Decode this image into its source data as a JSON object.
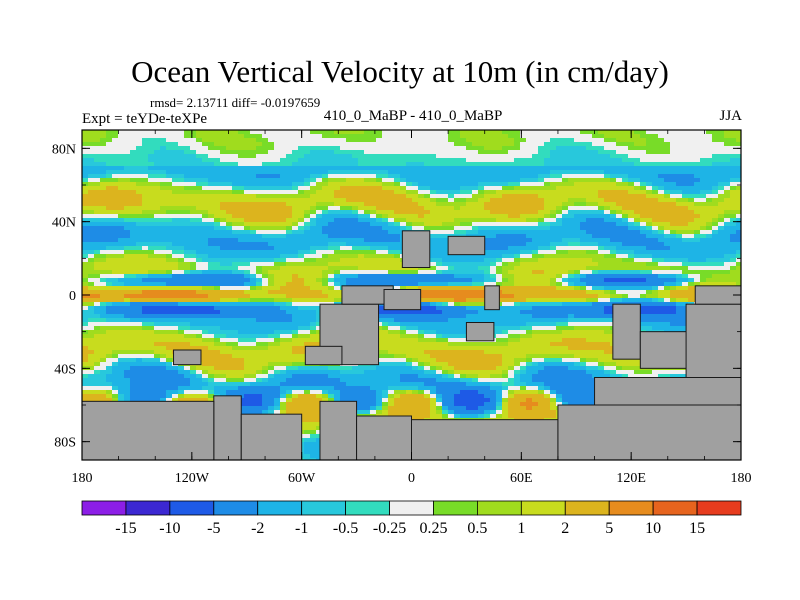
{
  "chart_data": {
    "type": "heatmap",
    "title": "Ocean Vertical Velocity at 10m (in cm/day)",
    "stats": "rmsd= 2.13711 diff= -0.0197659",
    "subtitle": "410_0_MaBP - 410_0_MaBP",
    "expt": "Expt = teYDe-teXPe",
    "season": "JJA",
    "x_range": [
      -180,
      180
    ],
    "y_range": [
      -90,
      90
    ],
    "x_ticks": [
      {
        "value": -180,
        "label": "180"
      },
      {
        "value": -120,
        "label": "120W"
      },
      {
        "value": -60,
        "label": "60W"
      },
      {
        "value": 0,
        "label": "0"
      },
      {
        "value": 60,
        "label": "60E"
      },
      {
        "value": 120,
        "label": "120E"
      },
      {
        "value": 180,
        "label": "180"
      }
    ],
    "y_ticks": [
      {
        "value": 80,
        "label": "80N"
      },
      {
        "value": 40,
        "label": "40N"
      },
      {
        "value": 0,
        "label": "0"
      },
      {
        "value": -40,
        "label": "40S"
      },
      {
        "value": -80,
        "label": "80S"
      }
    ],
    "colorbar": {
      "colors": [
        "#8c1ee6",
        "#3c28d2",
        "#1e5ae6",
        "#1e8ce6",
        "#1eb4e6",
        "#28c8dc",
        "#32dcbe",
        "#f0f0f0",
        "#78dc28",
        "#a0dc1e",
        "#c8dc1e",
        "#dcb41e",
        "#e68c1e",
        "#e6641e",
        "#e63c1e"
      ],
      "labels": [
        "-15",
        "-10",
        "-5",
        "-2",
        "-1",
        "-0.5",
        "-0.25",
        "0.25",
        "0.5",
        "1",
        "2",
        "5",
        "10",
        "15"
      ]
    },
    "land_color": "#a0a0a0",
    "land": [
      {
        "lon0": -108,
        "lon1": -93,
        "lat0": -90,
        "lat1": -55
      },
      {
        "lon0": -93,
        "lon1": -60,
        "lat0": -90,
        "lat1": -65
      },
      {
        "lon0": -180,
        "lon1": -108,
        "lat0": -90,
        "lat1": -58
      },
      {
        "lon0": -50,
        "lon1": -30,
        "lat0": -90,
        "lat1": -58
      },
      {
        "lon0": -30,
        "lon1": 0,
        "lat0": -90,
        "lat1": -66
      },
      {
        "lon0": 0,
        "lon1": 80,
        "lat0": -90,
        "lat1": -68
      },
      {
        "lon0": 80,
        "lon1": 180,
        "lat0": -90,
        "lat1": -60
      },
      {
        "lon0": 100,
        "lon1": 180,
        "lat0": -60,
        "lat1": -45
      },
      {
        "lon0": -50,
        "lon1": -18,
        "lat0": -38,
        "lat1": -5
      },
      {
        "lon0": -38,
        "lon1": -10,
        "lat0": -5,
        "lat1": 5
      },
      {
        "lon0": -15,
        "lon1": 5,
        "lat0": -8,
        "lat1": 3
      },
      {
        "lon0": 30,
        "lon1": 45,
        "lat0": -25,
        "lat1": -15
      },
      {
        "lon0": 40,
        "lon1": 48,
        "lat0": -8,
        "lat1": 5
      },
      {
        "lon0": 110,
        "lon1": 125,
        "lat0": -35,
        "lat1": -5
      },
      {
        "lon0": 125,
        "lon1": 155,
        "lat0": -40,
        "lat1": -20
      },
      {
        "lon0": 150,
        "lon1": 180,
        "lat0": -45,
        "lat1": -5
      },
      {
        "lon0": 155,
        "lon1": 180,
        "lat0": -5,
        "lat1": 5
      },
      {
        "lon0": -5,
        "lon1": 10,
        "lat0": 15,
        "lat1": 35
      },
      {
        "lon0": 20,
        "lon1": 40,
        "lat0": 22,
        "lat1": 32
      },
      {
        "lon0": -58,
        "lon1": -38,
        "lat0": -38,
        "lat1": -28
      },
      {
        "lon0": -130,
        "lon1": -115,
        "lat0": -38,
        "lat1": -30
      }
    ]
  }
}
